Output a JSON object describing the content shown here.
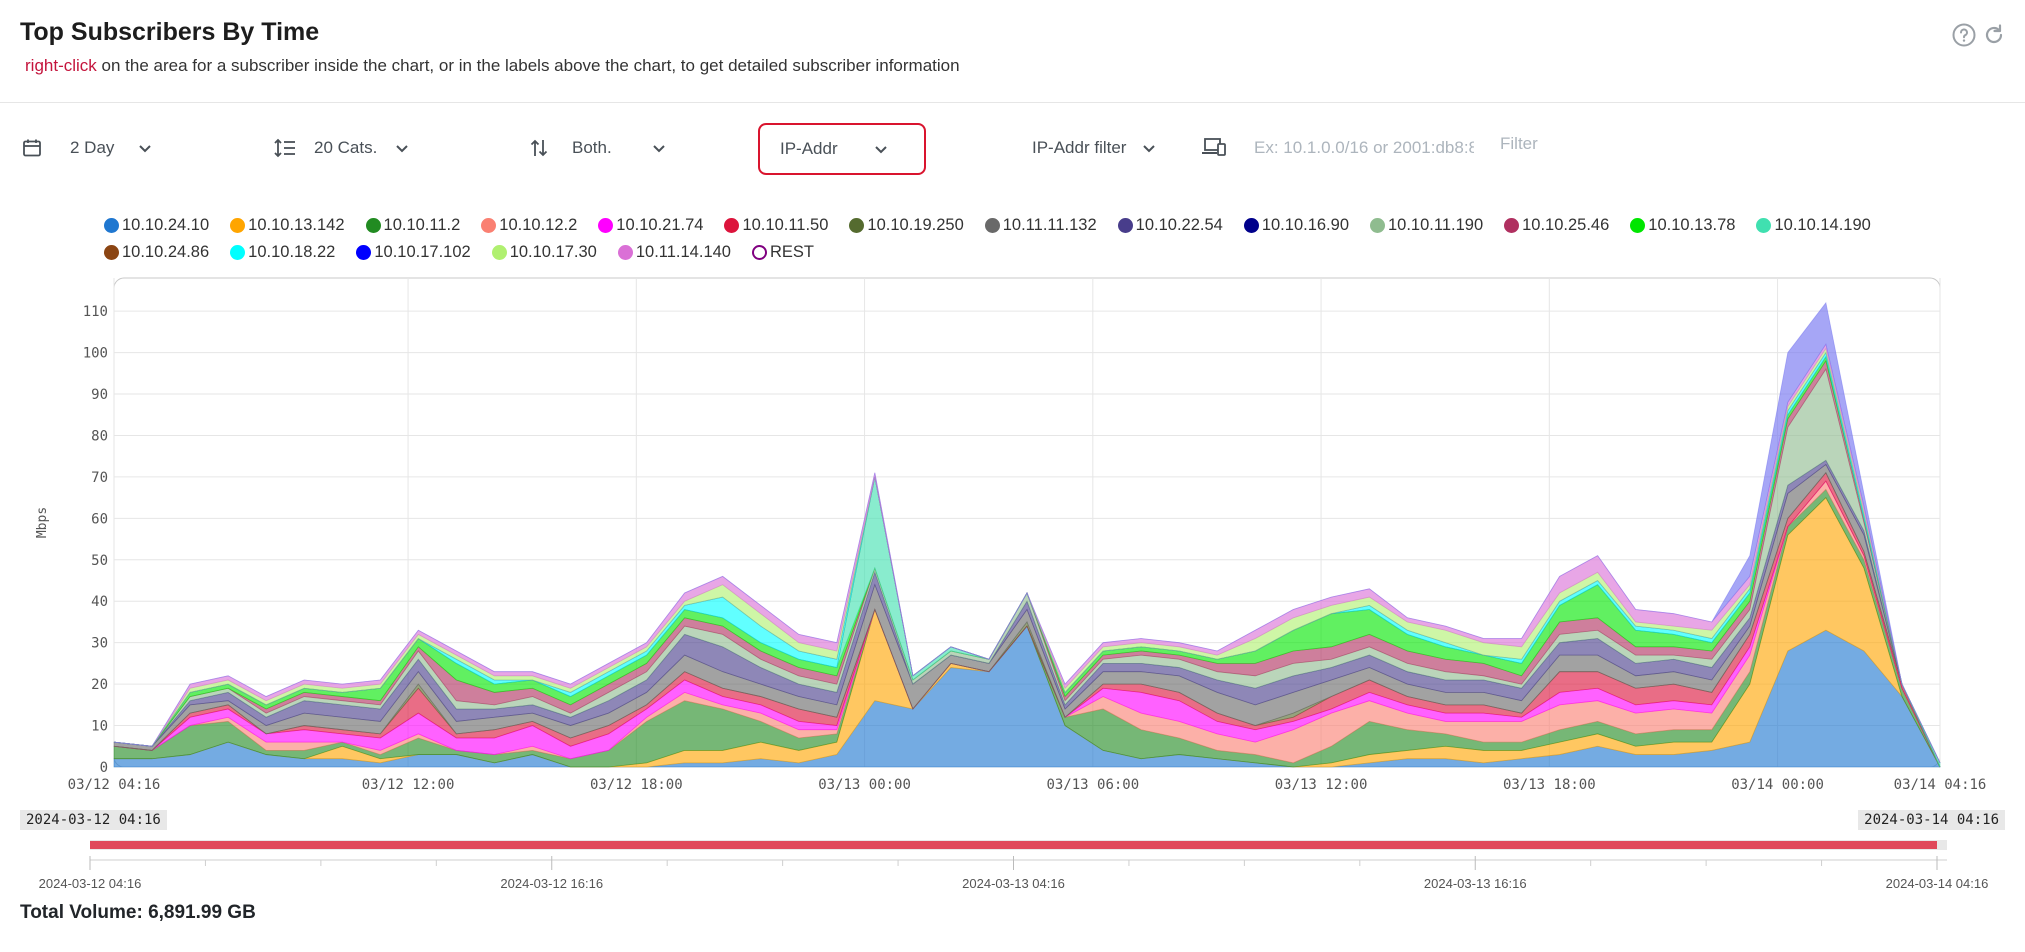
{
  "header": {
    "title": "Top Subscribers By Time",
    "hint_action": "right-click",
    "hint_text": "on the area for a subscriber inside the chart, or in the labels above the chart, to get detailed subscriber information",
    "help_icon": "question-circle-icon",
    "refresh_icon": "refresh-icon"
  },
  "toolbar": {
    "period": "2 Day",
    "categories": "20 Cats.",
    "direction": "Both.",
    "grouping": "IP-Addr",
    "filter_type": "IP-Addr filter",
    "filter_placeholder": "Ex: 10.1.0.0/16 or 2001:db8:8",
    "filter_button": "Filter"
  },
  "legend": [
    {
      "name": "10.10.24.10",
      "color": "#1f77d0"
    },
    {
      "name": "10.10.13.142",
      "color": "#ffa500"
    },
    {
      "name": "10.10.11.2",
      "color": "#228b22"
    },
    {
      "name": "10.10.12.2",
      "color": "#fa8072"
    },
    {
      "name": "10.10.21.74",
      "color": "#ff00ff"
    },
    {
      "name": "10.10.11.50",
      "color": "#dc143c"
    },
    {
      "name": "10.10.19.250",
      "color": "#556b2f"
    },
    {
      "name": "10.11.11.132",
      "color": "#696969"
    },
    {
      "name": "10.10.22.54",
      "color": "#483d8b"
    },
    {
      "name": "10.10.16.90",
      "color": "#00008b"
    },
    {
      "name": "10.10.11.190",
      "color": "#8fbc8f"
    },
    {
      "name": "10.10.25.46",
      "color": "#b03060"
    },
    {
      "name": "10.10.13.78",
      "color": "#00e600"
    },
    {
      "name": "10.10.14.190",
      "color": "#40e0b0"
    },
    {
      "name": "10.10.24.86",
      "color": "#8b4513"
    },
    {
      "name": "10.10.18.22",
      "color": "#00ffff"
    },
    {
      "name": "10.10.17.102",
      "color": "#0000ff"
    },
    {
      "name": "10.10.17.30",
      "color": "#b0f070"
    },
    {
      "name": "10.11.14.140",
      "color": "#da70d6"
    },
    {
      "name": "REST",
      "color": "#800080",
      "hollow": true
    }
  ],
  "chart_data": {
    "type": "area",
    "ylabel": "Mbps",
    "ylim": [
      0,
      118
    ],
    "yticks": [
      0,
      10,
      20,
      30,
      40,
      50,
      60,
      70,
      80,
      90,
      100,
      110
    ],
    "xticks": [
      "03/12 04:16",
      "03/12 12:00",
      "03/12 18:00",
      "03/13 00:00",
      "03/13 06:00",
      "03/13 12:00",
      "03/13 18:00",
      "03/14 00:00",
      "03/14 04:16"
    ],
    "xtick_hours": [
      0,
      7.73,
      13.73,
      19.73,
      25.73,
      31.73,
      37.73,
      43.73,
      48
    ],
    "x_hours": [
      0,
      1,
      2,
      3,
      4,
      5,
      6,
      7,
      8,
      9,
      10,
      11,
      12,
      13,
      14,
      15,
      16,
      17,
      18,
      19,
      20,
      21,
      22,
      23,
      24,
      25,
      26,
      27,
      28,
      29,
      30,
      31,
      32,
      33,
      34,
      35,
      36,
      37,
      38,
      39,
      40,
      41,
      42,
      43,
      44,
      45,
      46,
      47,
      48
    ],
    "series": [
      {
        "name": "10.10.24.10",
        "color": "#1f77d0",
        "values": [
          2,
          2,
          3,
          6,
          3,
          2,
          2,
          1,
          3,
          3,
          1,
          3,
          0,
          0,
          0,
          1,
          1,
          2,
          1,
          3,
          16,
          14,
          24,
          23,
          34,
          10,
          4,
          2,
          3,
          2,
          1,
          0,
          0,
          1,
          2,
          2,
          1,
          2,
          3,
          5,
          3,
          3,
          4,
          6,
          28,
          33,
          28,
          17,
          0
        ]
      },
      {
        "name": "10.10.13.142",
        "color": "#ffa500",
        "values": [
          0,
          0,
          0,
          0,
          0,
          0,
          3,
          1,
          0,
          0,
          0,
          0,
          0,
          0,
          1,
          3,
          3,
          4,
          3,
          3,
          22,
          0,
          1,
          0,
          0,
          0,
          0,
          0,
          0,
          0,
          0,
          0,
          1,
          2,
          2,
          3,
          3,
          2,
          3,
          3,
          2,
          3,
          2,
          14,
          28,
          32,
          20,
          0,
          0
        ]
      },
      {
        "name": "10.10.11.2",
        "color": "#228b22",
        "values": [
          3,
          2,
          7,
          5,
          1,
          2,
          1,
          1,
          4,
          1,
          2,
          1,
          2,
          4,
          10,
          12,
          10,
          5,
          3,
          2,
          0,
          0,
          0,
          0,
          0,
          2,
          10,
          7,
          4,
          2,
          2,
          1,
          4,
          8,
          5,
          3,
          2,
          2,
          3,
          3,
          3,
          3,
          3,
          3,
          2,
          2,
          2,
          2,
          0
        ]
      },
      {
        "name": "10.10.12.2",
        "color": "#fa8072",
        "values": [
          0,
          0,
          0,
          1,
          2,
          2,
          0,
          1,
          1,
          0,
          0,
          1,
          0,
          0,
          1,
          2,
          1,
          2,
          2,
          1,
          0,
          0,
          0,
          0,
          0,
          0,
          3,
          4,
          4,
          4,
          3,
          8,
          8,
          5,
          4,
          3,
          5,
          5,
          6,
          5,
          5,
          5,
          4,
          4,
          0,
          2,
          1,
          0,
          0
        ]
      },
      {
        "name": "10.10.21.74",
        "color": "#ff00ff",
        "values": [
          0,
          0,
          2,
          2,
          2,
          3,
          2,
          3,
          5,
          3,
          4,
          5,
          3,
          4,
          2,
          3,
          2,
          2,
          2,
          1,
          0,
          0,
          0,
          0,
          0,
          0,
          2,
          5,
          5,
          3,
          3,
          2,
          1,
          2,
          2,
          2,
          2,
          1,
          3,
          3,
          2,
          2,
          2,
          2,
          0,
          0,
          0,
          0,
          0
        ]
      },
      {
        "name": "10.10.11.50",
        "color": "#dc143c",
        "values": [
          0,
          0,
          1,
          1,
          0,
          1,
          1,
          1,
          6,
          1,
          2,
          1,
          2,
          2,
          1,
          2,
          2,
          2,
          3,
          2,
          0,
          0,
          0,
          0,
          0,
          0,
          1,
          2,
          2,
          2,
          1,
          1,
          3,
          3,
          2,
          2,
          2,
          1,
          5,
          4,
          4,
          4,
          3,
          3,
          2,
          2,
          1,
          1,
          0
        ]
      },
      {
        "name": "10.10.19.250",
        "color": "#556b2f",
        "values": [
          0,
          0,
          0,
          0,
          0,
          0,
          0,
          0,
          1,
          0,
          0,
          0,
          0,
          0,
          0,
          0,
          0,
          0,
          0,
          0,
          0,
          0,
          0,
          0,
          1,
          0,
          0,
          0,
          0,
          0,
          0,
          1,
          0,
          0,
          0,
          0,
          0,
          0,
          0,
          0,
          0,
          0,
          0,
          0,
          0,
          0,
          0,
          0,
          0
        ]
      },
      {
        "name": "10.11.11.132",
        "color": "#696969",
        "values": [
          1,
          1,
          2,
          1,
          2,
          3,
          3,
          3,
          3,
          3,
          3,
          2,
          3,
          3,
          3,
          4,
          4,
          3,
          3,
          3,
          6,
          6,
          2,
          2,
          3,
          2,
          3,
          3,
          4,
          5,
          5,
          5,
          4,
          3,
          3,
          3,
          3,
          3,
          4,
          4,
          3,
          3,
          3,
          2,
          6,
          2,
          4,
          0,
          0
        ]
      },
      {
        "name": "10.10.22.54",
        "color": "#483d8b",
        "values": [
          0,
          0,
          1,
          2,
          2,
          3,
          3,
          3,
          3,
          3,
          2,
          2,
          2,
          3,
          3,
          5,
          6,
          4,
          3,
          3,
          3,
          0,
          0,
          0,
          2,
          1,
          2,
          2,
          2,
          3,
          4,
          4,
          3,
          3,
          3,
          3,
          3,
          3,
          3,
          4,
          3,
          3,
          3,
          2,
          2,
          1,
          1,
          0,
          0
        ]
      },
      {
        "name": "10.10.16.90",
        "color": "#00008b",
        "values": [
          0,
          0,
          0,
          0,
          0,
          0,
          0,
          0,
          0,
          0,
          0,
          0,
          0,
          0,
          0,
          0,
          0,
          0,
          0,
          0,
          0,
          0,
          0,
          0,
          0,
          0,
          0,
          0,
          0,
          0,
          0,
          0,
          0,
          0,
          0,
          0,
          0,
          0,
          0,
          0,
          0,
          0,
          0,
          0,
          0,
          0,
          0,
          0,
          0
        ]
      },
      {
        "name": "10.10.11.190",
        "color": "#8fbc8f",
        "values": [
          0,
          0,
          1,
          1,
          1,
          1,
          1,
          1,
          2,
          2,
          1,
          2,
          1,
          2,
          2,
          2,
          3,
          2,
          2,
          2,
          1,
          1,
          1,
          1,
          2,
          1,
          1,
          2,
          2,
          2,
          3,
          3,
          2,
          2,
          2,
          2,
          1,
          1,
          2,
          2,
          2,
          1,
          2,
          2,
          14,
          22,
          2,
          0,
          0
        ]
      },
      {
        "name": "10.10.25.46",
        "color": "#b03060",
        "values": [
          0,
          0,
          0,
          0,
          1,
          1,
          1,
          1,
          1,
          5,
          3,
          2,
          2,
          2,
          2,
          2,
          2,
          2,
          2,
          2,
          0,
          0,
          0,
          0,
          0,
          1,
          1,
          1,
          1,
          2,
          3,
          3,
          3,
          3,
          3,
          3,
          3,
          2,
          3,
          3,
          2,
          2,
          2,
          2,
          2,
          2,
          1,
          0,
          0
        ]
      },
      {
        "name": "10.10.13.78",
        "color": "#00e600",
        "values": [
          0,
          0,
          1,
          1,
          1,
          1,
          1,
          3,
          2,
          4,
          2,
          2,
          2,
          2,
          2,
          2,
          2,
          2,
          2,
          2,
          0,
          0,
          0,
          0,
          0,
          1,
          1,
          1,
          1,
          1,
          3,
          5,
          8,
          6,
          4,
          3,
          2,
          3,
          4,
          8,
          4,
          3,
          2,
          2,
          1,
          1,
          0,
          0,
          0
        ]
      },
      {
        "name": "10.10.14.190",
        "color": "#40e0b0",
        "values": [
          0,
          0,
          0,
          0,
          0,
          0,
          0,
          0,
          0,
          0,
          0,
          0,
          0,
          0,
          0,
          0,
          0,
          0,
          0,
          0,
          22,
          1,
          1,
          0,
          0,
          0,
          0,
          0,
          0,
          0,
          0,
          0,
          0,
          0,
          0,
          0,
          0,
          0,
          0,
          0,
          0,
          0,
          0,
          0,
          0,
          0,
          0,
          0,
          1
        ]
      },
      {
        "name": "10.10.24.86",
        "color": "#8b4513",
        "values": [
          0,
          0,
          0,
          0,
          0,
          0,
          0,
          0,
          0,
          0,
          0,
          0,
          0,
          0,
          0,
          0,
          0,
          0,
          0,
          0,
          0,
          0,
          0,
          0,
          0,
          0,
          0,
          0,
          0,
          0,
          0,
          0,
          0,
          0,
          0,
          0,
          0,
          0,
          0,
          0,
          0,
          0,
          0,
          0,
          0,
          0,
          0,
          0,
          0
        ]
      },
      {
        "name": "10.10.18.22",
        "color": "#00ffff",
        "values": [
          0,
          0,
          0,
          0,
          0,
          0,
          0,
          0,
          0,
          1,
          1,
          0,
          1,
          1,
          1,
          1,
          5,
          4,
          2,
          2,
          0,
          0,
          0,
          0,
          0,
          0,
          0,
          0,
          0,
          0,
          0,
          0,
          0,
          1,
          1,
          1,
          0,
          1,
          1,
          1,
          1,
          1,
          1,
          1,
          1,
          1,
          1,
          0,
          0
        ]
      },
      {
        "name": "10.10.17.102",
        "color": "#0000ff",
        "values": [
          0,
          0,
          0,
          0,
          0,
          0,
          0,
          0,
          0,
          0,
          0,
          0,
          0,
          0,
          0,
          0,
          0,
          0,
          0,
          0,
          0,
          0,
          0,
          0,
          0,
          0,
          0,
          0,
          0,
          0,
          0,
          0,
          0,
          0,
          0,
          0,
          0,
          0,
          0,
          0,
          0,
          0,
          0,
          0,
          0,
          0,
          0,
          0,
          0
        ]
      },
      {
        "name": "10.10.17.30",
        "color": "#b0f070",
        "values": [
          0,
          0,
          1,
          1,
          1,
          1,
          1,
          1,
          1,
          1,
          1,
          1,
          1,
          1,
          1,
          1,
          3,
          3,
          2,
          2,
          0,
          0,
          0,
          0,
          0,
          1,
          1,
          1,
          1,
          1,
          3,
          3,
          2,
          2,
          2,
          3,
          3,
          3,
          2,
          2,
          1,
          1,
          2,
          1,
          1,
          1,
          1,
          0,
          0
        ]
      },
      {
        "name": "10.11.14.140",
        "color": "#da70d6",
        "values": [
          0,
          0,
          1,
          1,
          1,
          1,
          1,
          1,
          1,
          1,
          1,
          1,
          1,
          1,
          1,
          2,
          2,
          2,
          2,
          2,
          1,
          0,
          0,
          0,
          0,
          1,
          1,
          1,
          1,
          1,
          2,
          2,
          2,
          2,
          1,
          1,
          1,
          2,
          4,
          4,
          3,
          3,
          2,
          2,
          1,
          1,
          1,
          0,
          0
        ]
      },
      {
        "name": "REST",
        "color": "#7070f0",
        "values": [
          0,
          0,
          0,
          0,
          0,
          0,
          0,
          0,
          0,
          0,
          0,
          0,
          0,
          0,
          0,
          0,
          0,
          0,
          0,
          0,
          0,
          0,
          0,
          0,
          0,
          0,
          0,
          0,
          0,
          0,
          0,
          0,
          0,
          0,
          0,
          0,
          0,
          0,
          0,
          0,
          0,
          0,
          0,
          5,
          12,
          10,
          3,
          0,
          0
        ]
      }
    ]
  },
  "range": {
    "start": "2024-03-12 04:16",
    "end": "2024-03-14 04:16",
    "ticks": [
      "2024-03-12 04:16",
      "2024-03-12 16:16",
      "2024-03-13 04:16",
      "2024-03-13 16:16",
      "2024-03-14 04:16"
    ],
    "bar_color": "#e0485a"
  },
  "footer": {
    "total": "Total Volume: 6,891.99 GB"
  }
}
